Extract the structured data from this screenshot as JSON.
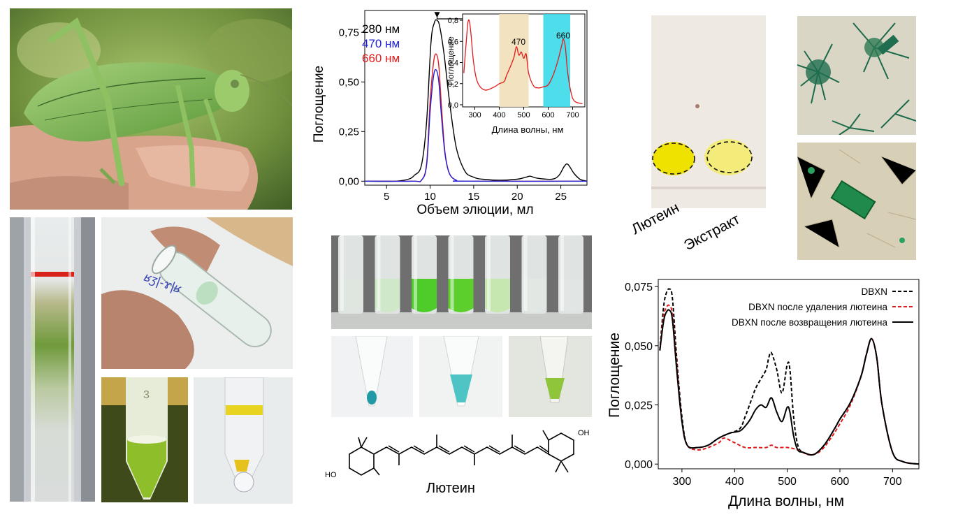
{
  "elution_chart": {
    "ylabel": "Поглощение",
    "xlabel": "Объем элюции, мл",
    "legend": [
      {
        "name": "280 нм",
        "color": "#000000"
      },
      {
        "name": "470 нм",
        "color": "#1f1fd6"
      },
      {
        "name": "660 нм",
        "color": "#e01b1b"
      }
    ],
    "x_ticks": [
      "5",
      "10",
      "15",
      "20",
      "25"
    ],
    "y_ticks": [
      "0,00",
      "0,25",
      "0,50",
      "0,75"
    ]
  },
  "inset_chart": {
    "ylabel": "Поглощение",
    "xlabel": "Длина волны, нм",
    "x_ticks": [
      "300",
      "400",
      "500",
      "600",
      "700"
    ],
    "y_ticks": [
      "0,0",
      "0,2",
      "0,4",
      "0,6",
      "0,8"
    ],
    "band_labels": [
      "470",
      "660"
    ]
  },
  "tlc": {
    "labels": [
      "Лютеин",
      "Экстракт"
    ]
  },
  "structure": {
    "caption": "Лютеин",
    "left_group": "HO",
    "right_group": "OH"
  },
  "spectrum_chart": {
    "ylabel": "Поглощение",
    "xlabel": "Длина волны, нм",
    "x_ticks": [
      "300",
      "400",
      "500",
      "600",
      "700"
    ],
    "y_ticks": [
      "0,000",
      "0,025",
      "0,050",
      "0,075"
    ],
    "legend": [
      {
        "name": "DBXN",
        "color": "#000000",
        "dash": "dashed"
      },
      {
        "name": "DBXN после удаления лютеина",
        "color": "#e01b1b",
        "dash": "dashed"
      },
      {
        "name": "DBXN после возвращения лютеина",
        "color": "#000000",
        "dash": "solid"
      }
    ]
  },
  "chart_data": [
    {
      "type": "line",
      "xlabel": "Объем элюции, мл",
      "ylabel": "Поглощение",
      "xlim": [
        2.5,
        28
      ],
      "ylim": [
        -0.02,
        0.86
      ],
      "series": [
        {
          "name": "280 нм",
          "color": "#000000",
          "x": [
            2.5,
            6,
            7.5,
            8.2,
            9,
            9.6,
            10.1,
            10.5,
            10.8,
            11.1,
            11.6,
            12.2,
            13,
            14,
            15,
            16,
            18,
            20,
            21,
            21.5,
            22.3,
            24,
            24.8,
            25.4,
            25.8,
            26.5,
            27.2,
            28
          ],
          "y": [
            0,
            0,
            0.01,
            0.03,
            0.08,
            0.3,
            0.7,
            0.8,
            0.81,
            0.78,
            0.64,
            0.41,
            0.17,
            0.05,
            0.02,
            0.01,
            0.005,
            0.01,
            0.02,
            0.025,
            0.015,
            0.01,
            0.03,
            0.075,
            0.085,
            0.04,
            0.01,
            0
          ]
        },
        {
          "name": "470 нм",
          "color": "#1f1fd6",
          "x": [
            2.5,
            8,
            9,
            9.6,
            10,
            10.4,
            10.7,
            11,
            11.3,
            11.7,
            12.2,
            13,
            14,
            28
          ],
          "y": [
            0,
            0,
            0.005,
            0.08,
            0.35,
            0.53,
            0.56,
            0.5,
            0.33,
            0.14,
            0.04,
            0.005,
            0,
            0
          ]
        },
        {
          "name": "660 нм",
          "color": "#e01b1b",
          "x": [
            2.5,
            8,
            9,
            9.6,
            10,
            10.4,
            10.7,
            11,
            11.3,
            11.7,
            12.2,
            13,
            14,
            28
          ],
          "y": [
            0,
            0,
            0.005,
            0.09,
            0.4,
            0.6,
            0.64,
            0.58,
            0.38,
            0.15,
            0.04,
            0.005,
            0,
            0
          ]
        }
      ]
    },
    {
      "type": "line",
      "xlabel": "Длина волны, нм",
      "ylabel": "Поглощение",
      "xlim": [
        250,
        750
      ],
      "ylim": [
        -0.02,
        0.86
      ],
      "bands": [
        [
          400,
          520
        ],
        [
          580,
          690
        ]
      ],
      "series": [
        {
          "name": "",
          "color": "#e01b1b",
          "x": [
            255,
            265,
            272,
            278,
            285,
            295,
            310,
            340,
            380,
            400,
            420,
            430,
            445,
            460,
            470,
            480,
            490,
            500,
            510,
            520,
            540,
            560,
            580,
            600,
            620,
            640,
            655,
            662,
            670,
            680,
            695,
            710,
            740
          ],
          "y": [
            0.3,
            0.6,
            0.78,
            0.79,
            0.65,
            0.4,
            0.22,
            0.14,
            0.17,
            0.2,
            0.22,
            0.28,
            0.36,
            0.45,
            0.55,
            0.47,
            0.5,
            0.44,
            0.48,
            0.3,
            0.18,
            0.16,
            0.17,
            0.19,
            0.28,
            0.42,
            0.56,
            0.62,
            0.55,
            0.3,
            0.1,
            0.03,
            0.01
          ]
        }
      ]
    },
    {
      "type": "line",
      "xlabel": "Длина волны, нм",
      "ylabel": "Поглощение",
      "xlim": [
        255,
        750
      ],
      "ylim": [
        -0.002,
        0.078
      ],
      "series": [
        {
          "name": "DBXN",
          "color": "#000000",
          "dash": "dashed",
          "x": [
            258,
            265,
            270,
            276,
            282,
            290,
            300,
            310,
            330,
            350,
            370,
            390,
            410,
            420,
            430,
            440,
            450,
            460,
            465,
            470,
            480,
            490,
            500,
            505,
            512,
            520,
            530,
            550,
            570,
            590,
            600,
            620,
            640,
            650,
            660,
            670,
            680,
            700,
            720,
            750
          ],
          "y": [
            0.048,
            0.066,
            0.072,
            0.074,
            0.07,
            0.045,
            0.02,
            0.008,
            0.007,
            0.008,
            0.011,
            0.013,
            0.015,
            0.02,
            0.026,
            0.032,
            0.036,
            0.04,
            0.045,
            0.047,
            0.04,
            0.03,
            0.042,
            0.04,
            0.02,
            0.008,
            0.005,
            0.004,
            0.008,
            0.015,
            0.019,
            0.026,
            0.037,
            0.046,
            0.053,
            0.045,
            0.025,
            0.005,
            0.001,
            0
          ]
        },
        {
          "name": "DBXN после удаления лютеина",
          "color": "#e01b1b",
          "dash": "dashed",
          "x": [
            258,
            265,
            270,
            276,
            282,
            290,
            300,
            310,
            330,
            350,
            370,
            380,
            400,
            420,
            440,
            460,
            470,
            480,
            500,
            520,
            540,
            560,
            580,
            600,
            620,
            640,
            650,
            660,
            670,
            680,
            700,
            720,
            750
          ],
          "y": [
            0.048,
            0.062,
            0.066,
            0.067,
            0.063,
            0.042,
            0.018,
            0.008,
            0.006,
            0.007,
            0.009,
            0.011,
            0.009,
            0.007,
            0.007,
            0.007,
            0.008,
            0.007,
            0.007,
            0.006,
            0.004,
            0.005,
            0.01,
            0.017,
            0.025,
            0.037,
            0.046,
            0.053,
            0.045,
            0.025,
            0.005,
            0.001,
            0
          ]
        },
        {
          "name": "DBXN после возвращения лютеина",
          "color": "#000000",
          "dash": "solid",
          "x": [
            258,
            265,
            270,
            276,
            282,
            290,
            300,
            310,
            330,
            350,
            370,
            390,
            410,
            420,
            430,
            440,
            450,
            460,
            470,
            480,
            490,
            500,
            505,
            512,
            520,
            530,
            550,
            570,
            590,
            600,
            620,
            640,
            650,
            660,
            670,
            680,
            700,
            720,
            750
          ],
          "y": [
            0.048,
            0.06,
            0.064,
            0.065,
            0.061,
            0.04,
            0.018,
            0.008,
            0.007,
            0.008,
            0.011,
            0.013,
            0.014,
            0.016,
            0.019,
            0.023,
            0.025,
            0.024,
            0.028,
            0.022,
            0.018,
            0.024,
            0.022,
            0.012,
            0.006,
            0.005,
            0.004,
            0.008,
            0.015,
            0.019,
            0.026,
            0.037,
            0.046,
            0.053,
            0.045,
            0.025,
            0.005,
            0.001,
            0
          ]
        }
      ]
    }
  ]
}
